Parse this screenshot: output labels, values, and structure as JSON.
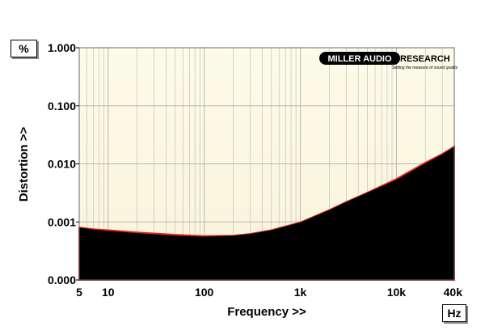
{
  "y_unit": "%",
  "x_unit": "Hz",
  "logo": {
    "part1": "MILLER AUDIO",
    "part2": "RESEARCH",
    "tagline": "Setting the measure of sound quality"
  },
  "chart_data": {
    "type": "area",
    "xlabel": "Frequency >>",
    "ylabel": "Distortion >>",
    "x_scale": "log",
    "y_scale": "log",
    "xlim": [
      5,
      40000
    ],
    "ylim": [
      0.0001,
      1.0
    ],
    "grid": true,
    "x_ticks": [
      {
        "value": 5,
        "label": "5"
      },
      {
        "value": 10,
        "label": "10"
      },
      {
        "value": 100,
        "label": "100"
      },
      {
        "value": 1000,
        "label": "1k"
      },
      {
        "value": 10000,
        "label": "10k"
      },
      {
        "value": 40000,
        "label": "40k"
      }
    ],
    "y_ticks": [
      {
        "value": 0.0001,
        "label": "0.000"
      },
      {
        "value": 0.001,
        "label": "0.001"
      },
      {
        "value": 0.01,
        "label": "0.010"
      },
      {
        "value": 0.1,
        "label": "0.100"
      },
      {
        "value": 1.0,
        "label": "1.000"
      }
    ],
    "colors": {
      "background": "#fbf8e4",
      "fill": "#000000",
      "series_red": "#e0201c",
      "grid": "#b8b8b8"
    },
    "series": [
      {
        "color": "#e0201c",
        "x": [
          5,
          7,
          10,
          20,
          50,
          100,
          200,
          300,
          500,
          1000,
          2000,
          3000,
          5000,
          10000,
          20000,
          30000,
          40000
        ],
        "y": [
          0.0008,
          0.00075,
          0.00072,
          0.00066,
          0.0006,
          0.00057,
          0.00058,
          0.00062,
          0.00072,
          0.00098,
          0.0016,
          0.0022,
          0.0032,
          0.0055,
          0.0105,
          0.0148,
          0.0198
        ]
      },
      {
        "color": "#000000",
        "x": [
          5,
          7,
          10,
          20,
          50,
          100,
          200,
          300,
          500,
          1000,
          2000,
          3000,
          5000,
          10000,
          20000,
          30000,
          40000
        ],
        "y": [
          0.0008,
          0.00074,
          0.0007,
          0.00064,
          0.00058,
          0.00056,
          0.00058,
          0.00062,
          0.00072,
          0.00098,
          0.0016,
          0.0022,
          0.0032,
          0.0053,
          0.0102,
          0.0146,
          0.0196
        ]
      }
    ]
  }
}
